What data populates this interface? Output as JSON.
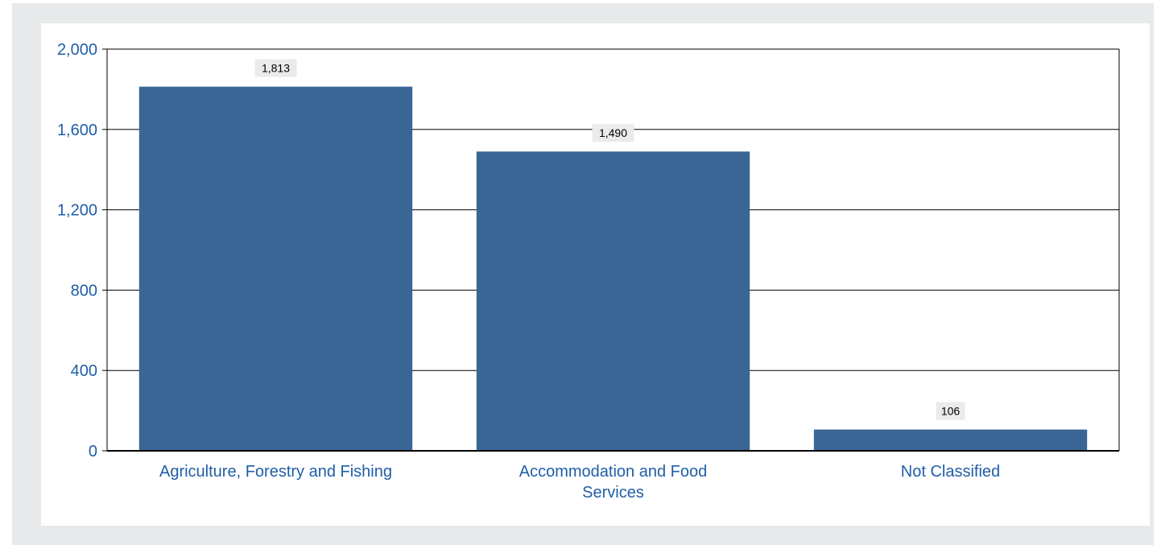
{
  "colors": {
    "bar": "#3a6695",
    "axis_text": "#1f5ea8",
    "gridline": "#000000",
    "panel_background": "#e8e9eb",
    "plot_background": "#ffffff",
    "data_label_background": "#ebebeb"
  },
  "chart_data": {
    "type": "bar",
    "categories": [
      "Agriculture, Forestry and Fishing",
      "Accommodation and Food Services",
      "Not Classified"
    ],
    "category_lines": [
      [
        "Agriculture, Forestry and Fishing"
      ],
      [
        "Accommodation and Food",
        "Services"
      ],
      [
        "Not Classified"
      ]
    ],
    "values": [
      1813,
      1490,
      106
    ],
    "value_labels": [
      "1,813",
      "1,490",
      "106"
    ],
    "title": "",
    "xlabel": "",
    "ylabel": "",
    "ylim": [
      0,
      2000
    ],
    "yticks": [
      0,
      400,
      800,
      1200,
      1600,
      2000
    ],
    "ytick_labels": [
      "0",
      "400",
      "800",
      "1,200",
      "1,600",
      "2,000"
    ],
    "grid": true,
    "legend": "none"
  }
}
